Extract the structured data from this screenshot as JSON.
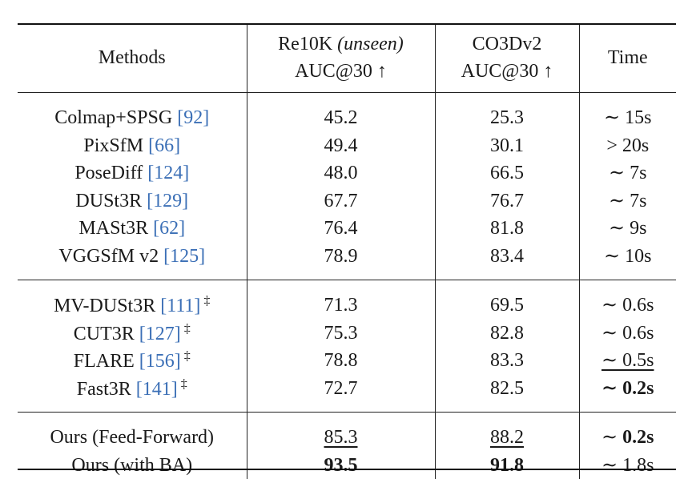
{
  "table": {
    "header": {
      "methods": "Methods",
      "re10k_line1": "Re10K",
      "re10k_unseen": "(unseen)",
      "re10k_line2": "AUC@30 ↑",
      "co3d_line1": "CO3Dv2",
      "co3d_line2": "AUC@30 ↑",
      "time": "Time"
    },
    "group1": [
      {
        "name": "Colmap+SPSG",
        "ref": "[92]",
        "re10k": "45.2",
        "co3d": "25.3",
        "time": "∼ 15s"
      },
      {
        "name": "PixSfM",
        "ref": "[66]",
        "re10k": "49.4",
        "co3d": "30.1",
        "time": "> 20s"
      },
      {
        "name": "PoseDiff",
        "ref": "[124]",
        "re10k": "48.0",
        "co3d": "66.5",
        "time": "∼ 7s"
      },
      {
        "name": "DUSt3R",
        "ref": "[129]",
        "re10k": "67.7",
        "co3d": "76.7",
        "time": "∼ 7s"
      },
      {
        "name": "MASt3R",
        "ref": "[62]",
        "re10k": "76.4",
        "co3d": "81.8",
        "time": "∼ 9s"
      },
      {
        "name": "VGGSfM v2",
        "ref": "[125]",
        "re10k": "78.9",
        "co3d": "83.4",
        "time": "∼ 10s"
      }
    ],
    "group2": [
      {
        "name": "MV-DUSt3R",
        "ref": "[111]",
        "dagger": "‡",
        "re10k": "71.3",
        "co3d": "69.5",
        "time": "∼ 0.6s"
      },
      {
        "name": "CUT3R",
        "ref": "[127]",
        "dagger": "‡",
        "re10k": "75.3",
        "co3d": "82.8",
        "time": "∼ 0.6s"
      },
      {
        "name": "FLARE",
        "ref": "[156]",
        "dagger": "‡",
        "re10k": "78.8",
        "co3d": "83.3",
        "time": "∼ 0.5s"
      },
      {
        "name": "Fast3R",
        "ref": "[141]",
        "dagger": "‡",
        "re10k": "72.7",
        "co3d": "82.5",
        "time": "∼ 0.2s"
      }
    ],
    "group3": [
      {
        "name": "Ours (Feed-Forward)",
        "re10k": "85.3",
        "co3d": "88.2",
        "time_prefix": "∼ ",
        "time_value": "0.2s"
      },
      {
        "name": "Ours (with BA)",
        "re10k": "93.5",
        "co3d": "91.8",
        "time": "∼ 1.8s"
      }
    ]
  }
}
